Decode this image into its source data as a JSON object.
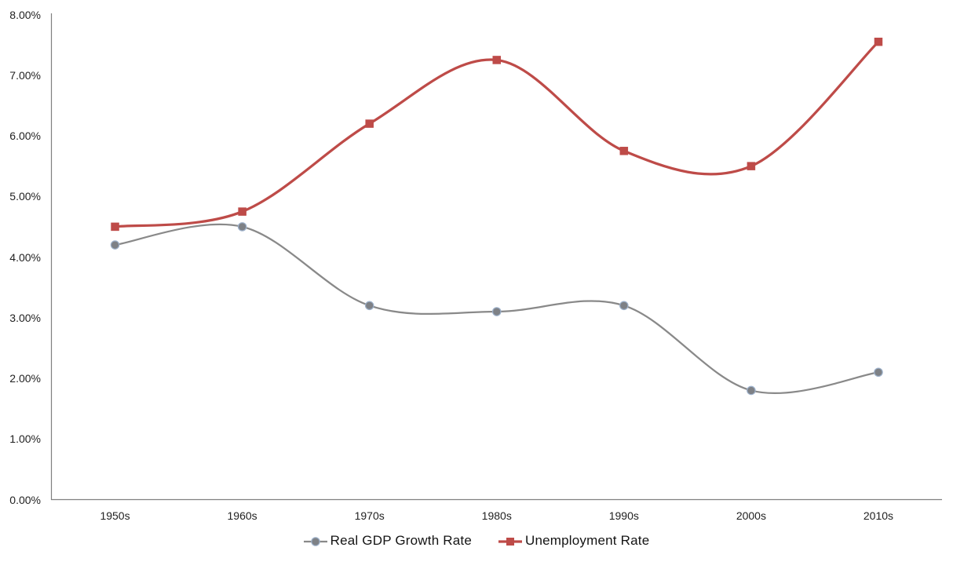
{
  "chart_data": {
    "type": "line",
    "title": "",
    "categories": [
      "1950s",
      "1960s",
      "1970s",
      "1980s",
      "1990s",
      "2000s",
      "2010s"
    ],
    "series": [
      {
        "name": "Real GDP Growth Rate",
        "values": [
          4.2,
          4.5,
          3.2,
          3.1,
          3.2,
          1.8,
          2.1
        ],
        "color": "#898989",
        "marker": "circle",
        "marker_fill": "#7e8186",
        "marker_edge": "#9db1cb",
        "line_width": 2.25
      },
      {
        "name": "Unemployment Rate",
        "values": [
          4.5,
          4.75,
          6.2,
          7.25,
          5.75,
          5.5,
          7.55
        ],
        "color": "#be4b48",
        "marker": "square",
        "marker_fill": "#be4b48",
        "marker_edge": "#be4b48",
        "line_width": 3.25
      }
    ],
    "ylim": [
      0,
      8
    ],
    "y_tick_step": 1,
    "y_tick_labels": [
      "0.00%",
      "1.00%",
      "2.00%",
      "3.00%",
      "4.00%",
      "5.00%",
      "6.00%",
      "7.00%",
      "8.00%"
    ],
    "value_format": "0.00%",
    "grid": false,
    "smoothed": true,
    "legend_position": "bottom",
    "axis_color": "#808080",
    "text_color": "#1f1f1f",
    "background": "#ffffff"
  }
}
